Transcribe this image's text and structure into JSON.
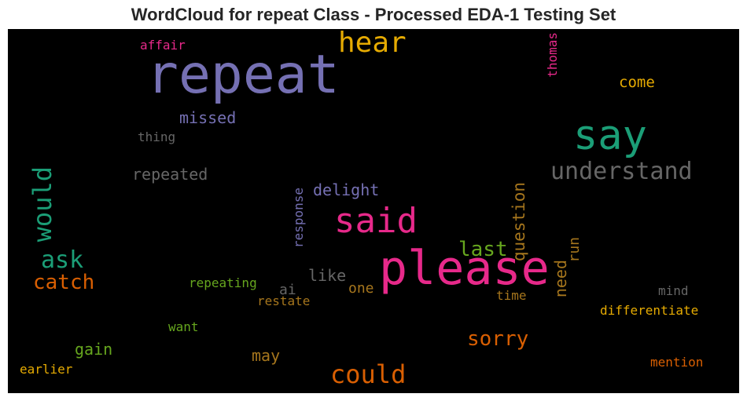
{
  "title": "WordCloud for repeat Class - Processed EDA-1 Testing Set",
  "chart_data": {
    "type": "wordcloud",
    "title": "WordCloud for repeat Class - Processed EDA-1 Testing Set",
    "background": "#000000",
    "words": [
      {
        "text": "repeat",
        "color": "#7570b3",
        "orientation": "horizontal"
      },
      {
        "text": "please",
        "color": "#e7298a",
        "orientation": "horizontal"
      },
      {
        "text": "say",
        "color": "#1b9e77",
        "orientation": "horizontal"
      },
      {
        "text": "said",
        "color": "#e7298a",
        "orientation": "horizontal"
      },
      {
        "text": "hear",
        "color": "#e6ab02",
        "orientation": "horizontal"
      },
      {
        "text": "understand",
        "color": "#666666",
        "orientation": "horizontal"
      },
      {
        "text": "could",
        "color": "#d95f02",
        "orientation": "horizontal"
      },
      {
        "text": "would",
        "color": "#1b9e77",
        "orientation": "vertical"
      },
      {
        "text": "ask",
        "color": "#1b9e77",
        "orientation": "horizontal"
      },
      {
        "text": "catch",
        "color": "#d95f02",
        "orientation": "horizontal"
      },
      {
        "text": "sorry",
        "color": "#d95f02",
        "orientation": "horizontal"
      },
      {
        "text": "last",
        "color": "#66a61e",
        "orientation": "horizontal"
      },
      {
        "text": "question",
        "color": "#a6761d",
        "orientation": "vertical"
      },
      {
        "text": "missed",
        "color": "#7570b3",
        "orientation": "horizontal"
      },
      {
        "text": "delight",
        "color": "#7570b3",
        "orientation": "horizontal"
      },
      {
        "text": "repeated",
        "color": "#666666",
        "orientation": "horizontal"
      },
      {
        "text": "come",
        "color": "#e6ab02",
        "orientation": "horizontal"
      },
      {
        "text": "need",
        "color": "#a6761d",
        "orientation": "vertical"
      },
      {
        "text": "like",
        "color": "#666666",
        "orientation": "horizontal"
      },
      {
        "text": "gain",
        "color": "#66a61e",
        "orientation": "horizontal"
      },
      {
        "text": "may",
        "color": "#a6761d",
        "orientation": "horizontal"
      },
      {
        "text": "one",
        "color": "#a6761d",
        "orientation": "horizontal"
      },
      {
        "text": "ai",
        "color": "#666666",
        "orientation": "horizontal"
      },
      {
        "text": "run",
        "color": "#a6761d",
        "orientation": "vertical"
      },
      {
        "text": "response",
        "color": "#7570b3",
        "orientation": "vertical"
      },
      {
        "text": "repeating",
        "color": "#66a61e",
        "orientation": "horizontal"
      },
      {
        "text": "affair",
        "color": "#e7298a",
        "orientation": "horizontal"
      },
      {
        "text": "thomas",
        "color": "#e7298a",
        "orientation": "vertical"
      },
      {
        "text": "thing",
        "color": "#666666",
        "orientation": "horizontal"
      },
      {
        "text": "restate",
        "color": "#a6761d",
        "orientation": "horizontal"
      },
      {
        "text": "time",
        "color": "#a6761d",
        "orientation": "horizontal"
      },
      {
        "text": "mind",
        "color": "#666666",
        "orientation": "horizontal"
      },
      {
        "text": "differentiate",
        "color": "#e6ab02",
        "orientation": "horizontal"
      },
      {
        "text": "want",
        "color": "#66a61e",
        "orientation": "horizontal"
      },
      {
        "text": "earlier",
        "color": "#e6ab02",
        "orientation": "horizontal"
      },
      {
        "text": "mention",
        "color": "#d95f02",
        "orientation": "horizontal"
      }
    ]
  }
}
